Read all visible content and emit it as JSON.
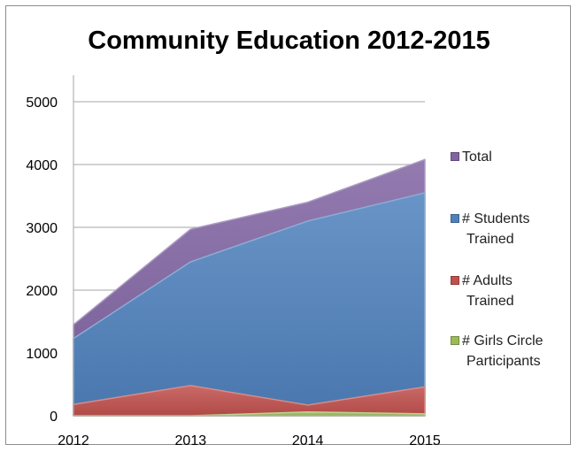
{
  "chart_data": {
    "type": "area",
    "title": "Community Education 2012-2015",
    "xlabel": "",
    "ylabel": "",
    "x": [
      "2012",
      "2013",
      "2014",
      "2015"
    ],
    "ylim": [
      0,
      5000
    ],
    "yticks": [
      "0",
      "1000",
      "2000",
      "3000",
      "4000",
      "5000"
    ],
    "grid": true,
    "legend_position": "right",
    "stacked": false,
    "series": [
      {
        "name": "Total",
        "values": [
          1450,
          2970,
          3400,
          4080
        ],
        "color": "#8064a2"
      },
      {
        "name": "# Students Trained",
        "values": [
          1230,
          2450,
          3100,
          3550
        ],
        "color": "#4f81bd"
      },
      {
        "name": "# Adults Trained",
        "values": [
          180,
          480,
          170,
          460
        ],
        "color": "#c0504d"
      },
      {
        "name": "# Girls Circle Participants",
        "values": [
          0,
          0,
          60,
          30
        ],
        "color": "#9bbb59"
      }
    ],
    "legend": [
      {
        "series": "Total",
        "lines": [
          "Total"
        ]
      },
      {
        "series": "# Students Trained",
        "lines": [
          "# Students",
          "Trained"
        ]
      },
      {
        "series": "# Adults Trained",
        "lines": [
          "# Adults",
          "Trained"
        ]
      },
      {
        "series": "# Girls Circle Participants",
        "lines": [
          "# Girls Circle",
          "Participants"
        ]
      }
    ]
  }
}
